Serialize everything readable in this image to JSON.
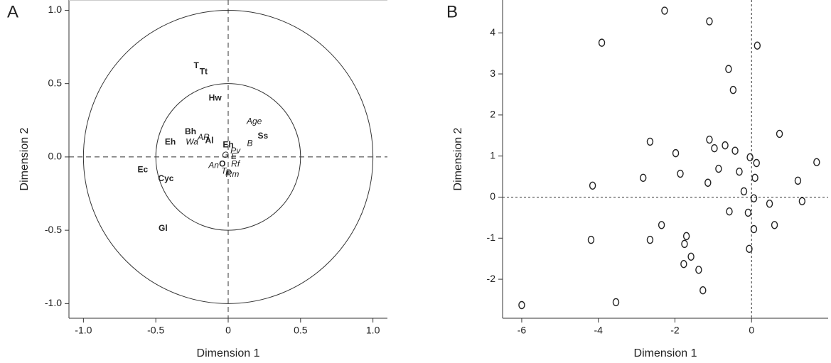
{
  "chart_data": [
    {
      "type": "label_scatter",
      "panel_label": "A",
      "xlabel": "Dimension 1",
      "ylabel": "Dimension 2",
      "xlim": [
        -1.1,
        1.1
      ],
      "ylim": [
        -1.1,
        1.07
      ],
      "xticks": [
        {
          "value": -1,
          "label": "-1.0"
        },
        -0.5,
        0,
        0.5,
        {
          "value": 1,
          "label": "1.0"
        }
      ],
      "yticks": [
        {
          "value": 1,
          "label": "1.0"
        },
        0.5,
        {
          "value": 0,
          "label": "0.0"
        },
        -0.5,
        {
          "value": -1,
          "label": "-1.0"
        }
      ],
      "circles": [
        0.5,
        1
      ],
      "series": [
        {
          "color": "#e5262a",
          "style": "bold",
          "labels": [
            "T",
            "Tt",
            "Hw",
            "Bh",
            "Eh",
            "Al",
            "Eh",
            "Ss",
            "Ec",
            "Cyc",
            "Gl",
            "O"
          ],
          "x": [
            -0.22,
            -0.17,
            -0.09,
            -0.26,
            -0.4,
            -0.13,
            0.0,
            0.24,
            -0.59,
            -0.43,
            -0.45,
            -0.04
          ],
          "y": [
            0.62,
            0.58,
            0.4,
            0.17,
            0.1,
            0.11,
            0.08,
            0.14,
            -0.09,
            -0.15,
            -0.49,
            -0.05
          ]
        },
        {
          "color": "#2d4e9e",
          "style": "italic",
          "labels": [
            "Age",
            "B",
            "AR",
            "Wa",
            "Pv",
            "G",
            "E",
            "An",
            "Rf",
            "T",
            "P",
            "Rm"
          ],
          "x": [
            0.18,
            0.15,
            -0.17,
            -0.25,
            0.05,
            -0.02,
            0.04,
            -0.1,
            0.05,
            -0.03,
            0.0,
            0.03
          ],
          "y": [
            0.24,
            0.09,
            0.13,
            0.1,
            0.04,
            0.01,
            0.0,
            -0.06,
            -0.05,
            -0.1,
            -0.11,
            -0.12
          ]
        }
      ]
    },
    {
      "type": "scatter",
      "panel_label": "B",
      "xlabel": "Dimension 1",
      "ylabel": "Dimension 2",
      "xlim": [
        -6.5,
        2.0
      ],
      "ylim": [
        -2.95,
        4.8
      ],
      "xticks": [
        -6,
        -4,
        -2,
        0
      ],
      "yticks": [
        -2,
        -1,
        0,
        1,
        2,
        3,
        4
      ],
      "x": [
        -6.0,
        -3.54,
        -4.19,
        -4.15,
        -3.91,
        -2.27,
        -1.1,
        0.15,
        -0.6,
        -0.48,
        0.73,
        -2.65,
        -1.1,
        -1.98,
        -0.97,
        -0.69,
        -0.43,
        -0.04,
        0.13,
        1.7,
        -2.83,
        -1.86,
        -0.86,
        -0.32,
        -1.14,
        0.09,
        1.21,
        -0.2,
        0.06,
        0.47,
        1.32,
        -0.58,
        -0.09,
        -2.35,
        0.6,
        0.06,
        -2.65,
        -1.7,
        -1.75,
        -0.06,
        -1.58,
        -1.77,
        -1.38,
        -1.27
      ],
      "y": [
        -2.63,
        -2.56,
        -1.04,
        0.28,
        3.76,
        4.54,
        4.28,
        3.69,
        3.12,
        2.61,
        1.54,
        1.35,
        1.4,
        1.07,
        1.19,
        1.26,
        1.13,
        0.97,
        0.83,
        0.85,
        0.47,
        0.57,
        0.69,
        0.62,
        0.35,
        0.47,
        0.4,
        0.14,
        -0.03,
        -0.16,
        -0.1,
        -0.35,
        -0.38,
        -0.68,
        -0.68,
        -0.78,
        -1.04,
        -0.95,
        -1.14,
        -1.26,
        -1.45,
        -1.63,
        -1.77,
        -2.27
      ]
    }
  ]
}
